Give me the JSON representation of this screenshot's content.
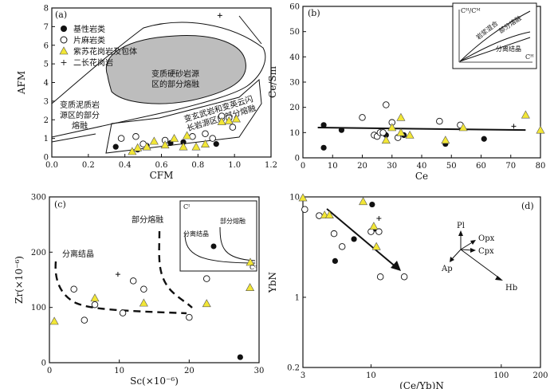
{
  "chart_data": [
    {
      "id": "a",
      "type": "scatter",
      "panel_label": "(a)",
      "xlabel": "CFM",
      "ylabel": "AFM",
      "xlim": [
        0,
        1.2
      ],
      "ylim": [
        0,
        8
      ],
      "xticks": [
        "0.0",
        "0.2",
        "0.4",
        "0.6",
        "0.8",
        "1.0",
        "1.2"
      ],
      "yticks": [
        "0",
        "1",
        "2",
        "3",
        "4",
        "5",
        "6",
        "7",
        "8"
      ],
      "legend": [
        {
          "symbol": "filled-circle",
          "label": "基性岩类"
        },
        {
          "symbol": "open-circle",
          "label": "片麻岩类"
        },
        {
          "symbol": "triangle",
          "label": "紫苏花岗岩及包体"
        },
        {
          "symbol": "plus",
          "label": "二长花岗岩"
        }
      ],
      "fields": {
        "metagreywacke": "变质硬砂岩源区的部分熔融",
        "metapelite": "变质泥质岩源区的部分熔融",
        "metabasalt": "变玄武岩和变英云闪长岩源区的部分熔融"
      },
      "series": [
        {
          "name": "基性岩类",
          "marker": "filled-circle",
          "points": [
            [
              0.35,
              0.55
            ],
            [
              0.47,
              0.4
            ],
            [
              0.52,
              0.6
            ],
            [
              0.65,
              0.75
            ],
            [
              0.72,
              0.8
            ],
            [
              0.9,
              0.7
            ]
          ]
        },
        {
          "name": "片麻岩类",
          "marker": "open-circle",
          "points": [
            [
              0.38,
              1.0
            ],
            [
              0.46,
              1.1
            ],
            [
              0.5,
              0.7
            ],
            [
              0.62,
              0.9
            ],
            [
              0.77,
              1.1
            ],
            [
              0.84,
              1.25
            ],
            [
              0.88,
              1.0
            ],
            [
              0.93,
              2.2
            ],
            [
              0.97,
              2.1
            ],
            [
              0.99,
              1.6
            ]
          ]
        },
        {
          "name": "紫苏花岗岩及包体",
          "marker": "triangle",
          "points": [
            [
              0.44,
              0.3
            ],
            [
              0.47,
              0.5
            ],
            [
              0.52,
              0.55
            ],
            [
              0.56,
              0.85
            ],
            [
              0.62,
              0.65
            ],
            [
              0.67,
              1.0
            ],
            [
              0.72,
              0.55
            ],
            [
              0.74,
              1.15
            ],
            [
              0.79,
              0.55
            ],
            [
              0.84,
              0.7
            ],
            [
              0.93,
              1.9
            ],
            [
              0.97,
              1.95
            ],
            [
              1.01,
              2.05
            ]
          ]
        },
        {
          "name": "二长花岗岩",
          "marker": "plus",
          "points": [
            [
              0.92,
              7.6
            ]
          ]
        }
      ]
    },
    {
      "id": "b",
      "type": "scatter",
      "panel_label": "(b)",
      "xlabel": "Ce",
      "ylabel": "Ce/Sm",
      "xlim": [
        0,
        80
      ],
      "ylim": [
        0,
        60
      ],
      "xticks": [
        "0",
        "10",
        "20",
        "30",
        "40",
        "50",
        "60",
        "70",
        "80"
      ],
      "yticks": [
        "0",
        "10",
        "20",
        "30",
        "40",
        "50",
        "60"
      ],
      "trend_line": {
        "x": [
          5,
          75
        ],
        "y": [
          12,
          11
        ]
      },
      "inset": {
        "title": "Cᴴ/Cᴹ",
        "x_label": "Cᴴ",
        "labels": [
          "岩浆混合",
          "部分熔融",
          "分离结晶"
        ]
      },
      "series": [
        {
          "name": "基性岩类",
          "marker": "filled-circle",
          "points": [
            [
              7,
              13
            ],
            [
              7,
              4
            ],
            [
              13,
              11
            ],
            [
              28,
              9
            ],
            [
              34,
              9
            ],
            [
              48,
              5.5
            ],
            [
              61,
              7.5
            ]
          ]
        },
        {
          "name": "片麻岩类",
          "marker": "open-circle",
          "points": [
            [
              20,
              16
            ],
            [
              24,
              9
            ],
            [
              25,
              8.5
            ],
            [
              26,
              10
            ],
            [
              27,
              10
            ],
            [
              28,
              21
            ],
            [
              30,
              14
            ],
            [
              32,
              8
            ],
            [
              46,
              14.5
            ],
            [
              53,
              13
            ]
          ]
        },
        {
          "name": "紫苏花岗岩及包体",
          "marker": "triangle",
          "points": [
            [
              33,
              16
            ],
            [
              28,
              7
            ],
            [
              30,
              12
            ],
            [
              33,
              10
            ],
            [
              36,
              9
            ],
            [
              48,
              7
            ],
            [
              54,
              12
            ],
            [
              75,
              17
            ],
            [
              80,
              11
            ]
          ]
        },
        {
          "name": "二长花岗岩",
          "marker": "plus",
          "points": [
            [
              71,
              12.5
            ]
          ]
        }
      ]
    },
    {
      "id": "c",
      "type": "scatter",
      "panel_label": "(c)",
      "xlabel": "Sc(×10⁻⁶)",
      "ylabel": "Zr(×10⁻⁶)",
      "xlim": [
        0,
        30
      ],
      "ylim": [
        0,
        300
      ],
      "xticks": [
        "0",
        "10",
        "20",
        "30"
      ],
      "yticks": [
        "0",
        "100",
        "200",
        "300"
      ],
      "trend_labels": [
        "分离结晶",
        "部分熔融"
      ],
      "inset": {
        "title": "Cᴵ",
        "x_label": "Cᶜ",
        "labels": [
          "分离结晶",
          "部分熔融"
        ]
      },
      "series": [
        {
          "name": "基性岩类",
          "marker": "filled-circle",
          "points": [
            [
              27.3,
              10
            ]
          ]
        },
        {
          "name": "片麻岩类",
          "marker": "open-circle",
          "points": [
            [
              3.5,
              133
            ],
            [
              5,
              77
            ],
            [
              6.5,
              105
            ],
            [
              10.5,
              90
            ],
            [
              12,
              148
            ],
            [
              13.5,
              133
            ],
            [
              20,
              82
            ],
            [
              22.5,
              152
            ]
          ]
        },
        {
          "name": "紫苏花岗岩及包体",
          "marker": "triangle",
          "points": [
            [
              0.7,
              75
            ],
            [
              6.5,
              117
            ],
            [
              13.5,
              108
            ],
            [
              22.5,
              107
            ],
            [
              28.7,
              136
            ]
          ]
        },
        {
          "name": "二长花岗岩",
          "marker": "plus",
          "points": [
            [
              9.8,
              160
            ]
          ]
        }
      ]
    },
    {
      "id": "d",
      "type": "scatter",
      "panel_label": "(d)",
      "xlabel": "(Ce/Yb)N",
      "ylabel": "YbN",
      "xscale": "log",
      "yscale": "log",
      "xlim": [
        3,
        200
      ],
      "ylim": [
        0.2,
        10
      ],
      "xticks": [
        "3",
        "10",
        "100",
        "200"
      ],
      "yticks": [
        "0.2",
        "1",
        "10"
      ],
      "vectors": [
        "Pl",
        "Opx",
        "Cpx",
        "Ap",
        "Hb"
      ],
      "series": [
        {
          "name": "基性岩类",
          "marker": "filled-circle",
          "points": [
            [
              5.3,
              2.3
            ],
            [
              7.4,
              3.8
            ],
            [
              10.2,
              8.4
            ],
            [
              10.5,
              4.8
            ]
          ]
        },
        {
          "name": "片麻岩类",
          "marker": "open-circle",
          "points": [
            [
              3.1,
              7.5
            ],
            [
              4,
              6.5
            ],
            [
              5.2,
              4.3
            ],
            [
              6,
              3.2
            ],
            [
              10,
              4.5
            ],
            [
              11.5,
              4.5
            ],
            [
              11.8,
              1.6
            ],
            [
              18,
              1.6
            ]
          ]
        },
        {
          "name": "紫苏花岗岩及包体",
          "marker": "triangle",
          "points": [
            [
              3.0,
              9.8
            ],
            [
              4.4,
              6.6
            ],
            [
              4.8,
              6.6
            ],
            [
              8.7,
              9
            ],
            [
              10.5,
              5.1
            ],
            [
              11,
              3.2
            ]
          ]
        },
        {
          "name": "二长花岗岩",
          "marker": "plus",
          "points": [
            [
              11.5,
              6.1
            ]
          ]
        }
      ]
    }
  ]
}
